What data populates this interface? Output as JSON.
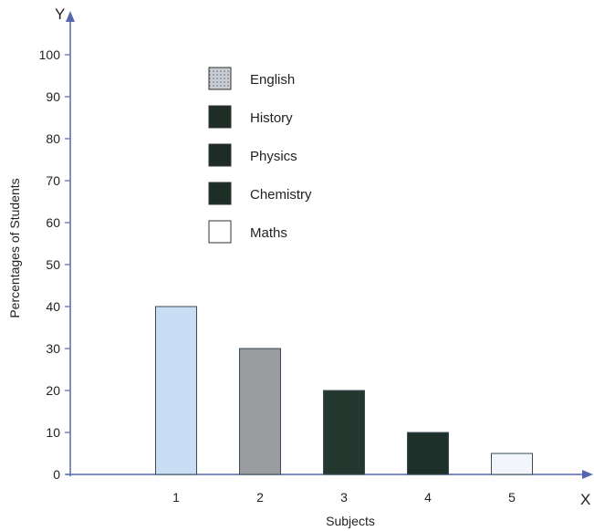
{
  "chart_data": {
    "type": "bar",
    "categories": [
      "1",
      "2",
      "3",
      "4",
      "5"
    ],
    "values": [
      40,
      30,
      20,
      10,
      5
    ],
    "title": "",
    "xlabel": "Subjects",
    "ylabel": "Percentages of Students",
    "x_axis_letter": "X",
    "y_axis_letter": "Y",
    "ylim": [
      0,
      100
    ],
    "yticks": [
      "0",
      "10",
      "20",
      "30",
      "40",
      "50",
      "60",
      "70",
      "80",
      "90",
      "100"
    ],
    "grid": false,
    "legend_position": "top-center",
    "legend": [
      {
        "label": "English",
        "color": "#b9c2c9",
        "pattern": "dotted"
      },
      {
        "label": "History",
        "color": "#1e2e26"
      },
      {
        "label": "Physics",
        "color": "#1c2b24"
      },
      {
        "label": "Chemistry",
        "color": "#1c2e26"
      },
      {
        "label": "Maths",
        "color": "#ffffff"
      }
    ],
    "bar_colors": [
      "#c9ddf4",
      "#9a9c9f",
      "#25382f",
      "#1d3029",
      "#f2f6fb"
    ],
    "axis_color": "#5468b0"
  }
}
